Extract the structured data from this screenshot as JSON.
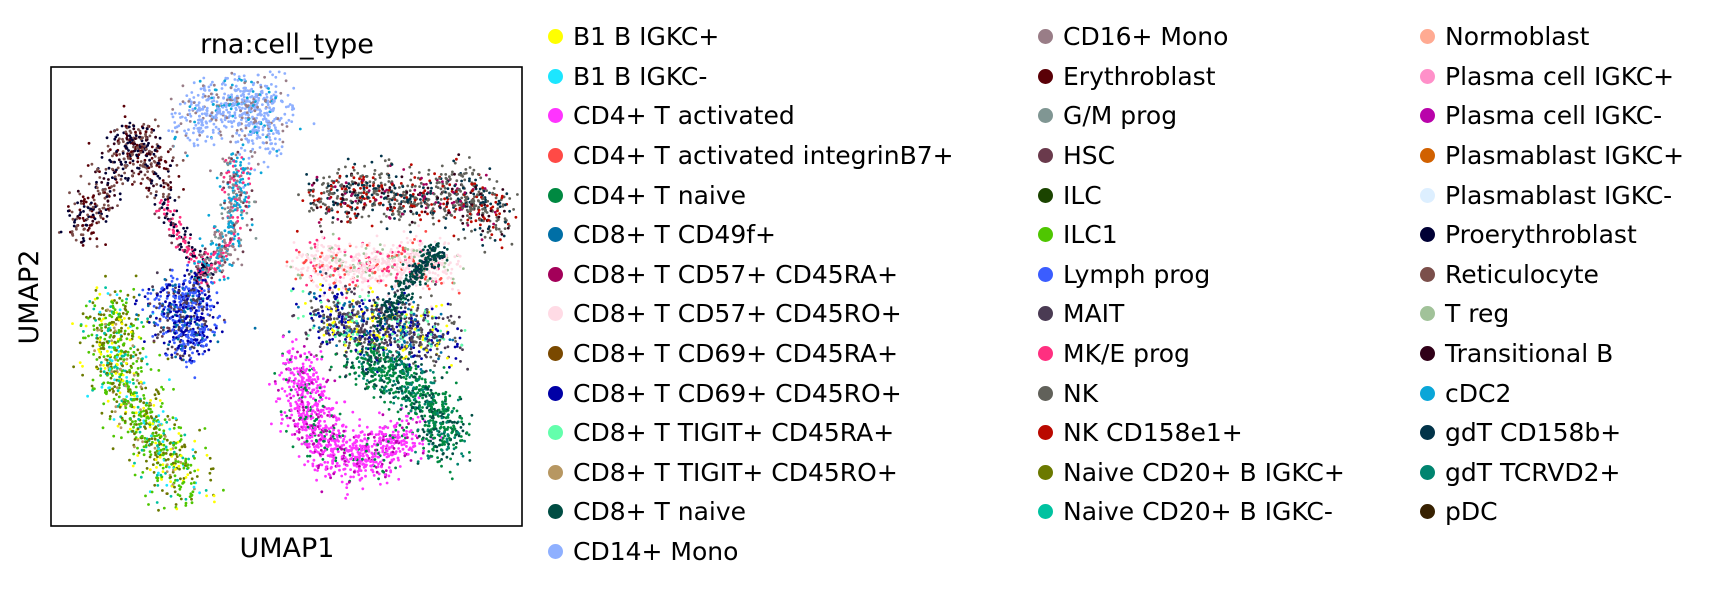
{
  "chart_data": {
    "type": "scatter",
    "title": "rna:cell_type",
    "xlabel": "UMAP1",
    "ylabel": "UMAP2",
    "xticks": [],
    "yticks": [],
    "grid": false,
    "legend_placement": "right-outside",
    "legend_columns": 3,
    "series": [
      {
        "name": "B1 B IGKC+",
        "color": "#ffff00"
      },
      {
        "name": "B1 B IGKC-",
        "color": "#1ce6ff"
      },
      {
        "name": "CD4+ T activated",
        "color": "#ff34ff"
      },
      {
        "name": "CD4+ T activated integrinB7+",
        "color": "#ff4a46"
      },
      {
        "name": "CD4+ T naive",
        "color": "#008941"
      },
      {
        "name": "CD8+ T CD49f+",
        "color": "#006fa6"
      },
      {
        "name": "CD8+ T CD57+ CD45RA+",
        "color": "#a30059"
      },
      {
        "name": "CD8+ T CD57+ CD45RO+",
        "color": "#ffdbe5"
      },
      {
        "name": "CD8+ T CD69+ CD45RA+",
        "color": "#7a4900"
      },
      {
        "name": "CD8+ T CD69+ CD45RO+",
        "color": "#0000a6"
      },
      {
        "name": "CD8+ T TIGIT+ CD45RA+",
        "color": "#63ffac"
      },
      {
        "name": "CD8+ T TIGIT+ CD45RO+",
        "color": "#b79762"
      },
      {
        "name": "CD8+ T naive",
        "color": "#004d43"
      },
      {
        "name": "CD14+ Mono",
        "color": "#8fb0ff"
      },
      {
        "name": "CD16+ Mono",
        "color": "#997d87"
      },
      {
        "name": "Erythroblast",
        "color": "#5a0007"
      },
      {
        "name": "G/M prog",
        "color": "#809693"
      },
      {
        "name": "HSC",
        "color": "#6a3a4c"
      },
      {
        "name": "ILC",
        "color": "#1b4400"
      },
      {
        "name": "ILC1",
        "color": "#4fc601"
      },
      {
        "name": "Lymph prog",
        "color": "#3b5dff"
      },
      {
        "name": "MAIT",
        "color": "#4a3b53"
      },
      {
        "name": "MK/E prog",
        "color": "#ff2f80"
      },
      {
        "name": "NK",
        "color": "#61615a"
      },
      {
        "name": "NK CD158e1+",
        "color": "#ba0900"
      },
      {
        "name": "Naive CD20+ B IGKC+",
        "color": "#6b7900"
      },
      {
        "name": "Naive CD20+ B IGKC-",
        "color": "#00c2a0"
      },
      {
        "name": "Normoblast",
        "color": "#ffaa92"
      },
      {
        "name": "Plasma cell IGKC+",
        "color": "#ff90c9"
      },
      {
        "name": "Plasma cell IGKC-",
        "color": "#b903aa"
      },
      {
        "name": "Plasmablast IGKC+",
        "color": "#d16100"
      },
      {
        "name": "Plasmablast IGKC-",
        "color": "#ddefff"
      },
      {
        "name": "Proerythroblast",
        "color": "#000035"
      },
      {
        "name": "Reticulocyte",
        "color": "#7b4f4b"
      },
      {
        "name": "T reg",
        "color": "#a1c299"
      },
      {
        "name": "Transitional B",
        "color": "#300018"
      },
      {
        "name": "cDC2",
        "color": "#0aa6d8"
      },
      {
        "name": "gdT CD158b+",
        "color": "#013349"
      },
      {
        "name": "gdT TCRVD2+",
        "color": "#00846f"
      },
      {
        "name": "pDC",
        "color": "#372101"
      }
    ]
  }
}
